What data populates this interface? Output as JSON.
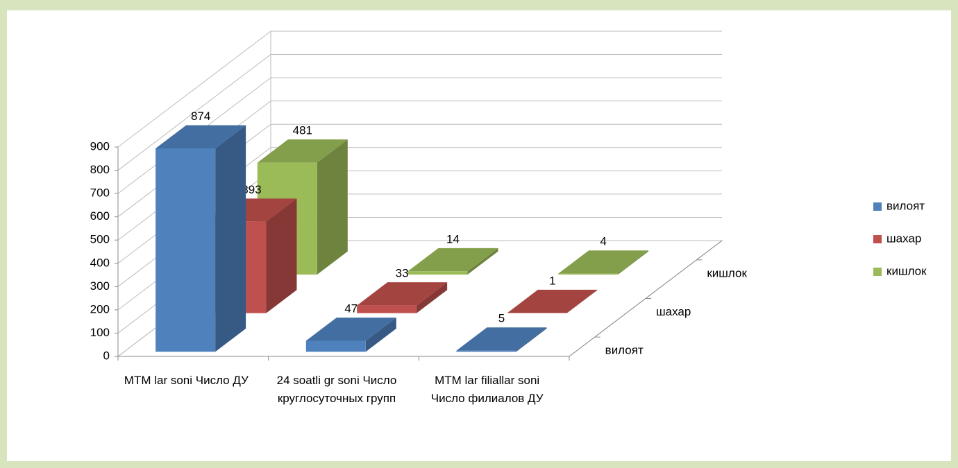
{
  "chart_data": {
    "type": "bar3d",
    "categories": [
      "MTM lar soni Число ДУ",
      "24 soatli gr soni Число круглосуточных групп",
      "MTM lar filiallar soni Число филиалов ДУ"
    ],
    "series": [
      {
        "name": "вилоят",
        "color": "#4f81bd",
        "values": [
          874,
          47,
          5
        ]
      },
      {
        "name": "шахар",
        "color": "#c0504d",
        "values": [
          393,
          33,
          1
        ]
      },
      {
        "name": "кишлок",
        "color": "#9bbb59",
        "values": [
          481,
          14,
          4
        ]
      }
    ],
    "ylim": [
      0,
      900
    ],
    "yticks": [
      0,
      100,
      200,
      300,
      400,
      500,
      600,
      700,
      800,
      900
    ],
    "grid": true,
    "legend": "right"
  }
}
